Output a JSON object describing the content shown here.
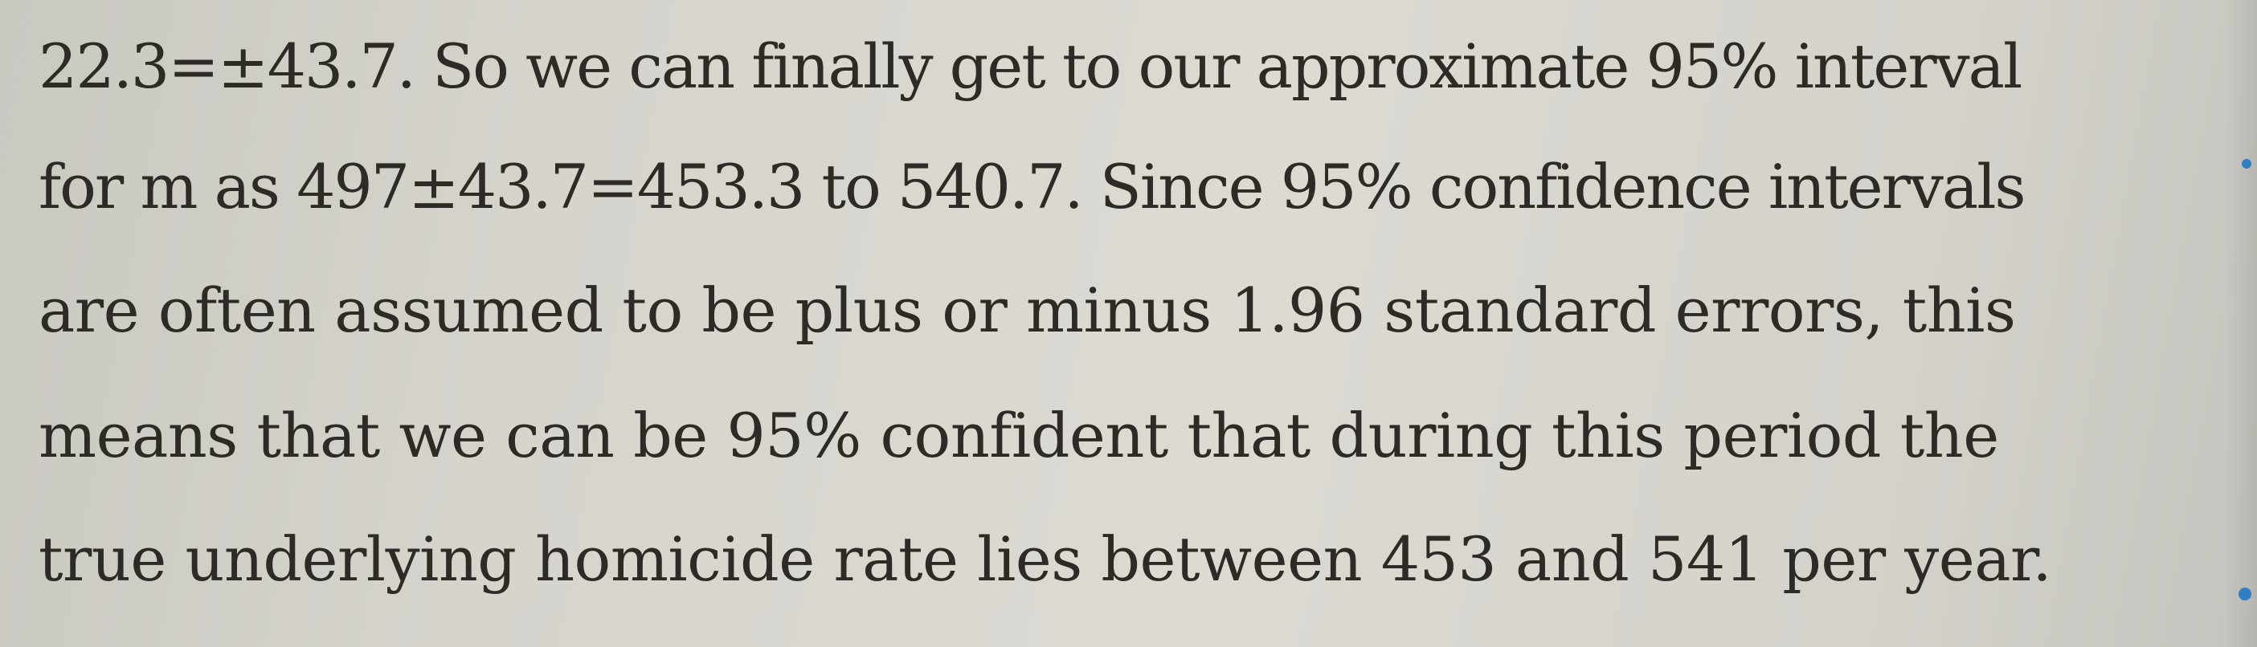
{
  "document": {
    "lines": [
      "22.3=±43.7. So we can finally get to our approximate 95% interval",
      "for m as 497±43.7=453.3 to 540.7. Since 95% confidence intervals",
      "are often assumed to be plus or minus 1.96 standard errors, this",
      "means that we can be 95% confident that during this period the",
      "true underlying homicide rate lies between 453 and 541 per year."
    ]
  },
  "colors": {
    "paper": "#d8d6cf",
    "ink": "#2e2a26",
    "speck": "#2f7fc2"
  }
}
